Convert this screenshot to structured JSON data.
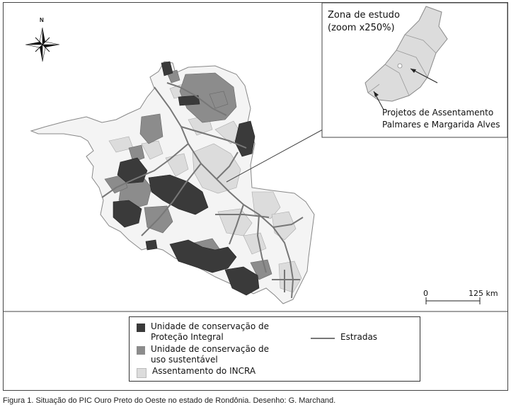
{
  "inset": {
    "title_line1": "Zona de estudo",
    "title_line2": "(zoom x250%)",
    "label_line1": "Projetos de Assentamento",
    "label_line2": "Palmares e Margarida Alves"
  },
  "compass": {
    "north": "N"
  },
  "scale": {
    "zero": "0",
    "distance": "125 km"
  },
  "legend": {
    "items": [
      {
        "line1": "Unidade de conservação de",
        "line2": "Proteção Integral",
        "color": "#3a3a3a"
      },
      {
        "line1": "Unidade de conservação de",
        "line2": "uso sustentável",
        "color": "#8c8c8c"
      },
      {
        "line1": "Assentamento do INCRA",
        "line2": "",
        "color": "#dcdcdc"
      }
    ],
    "road": {
      "label": "Estradas",
      "color": "#777777"
    }
  },
  "caption": "Figura 1. Situação do PIC Ouro Preto do Oeste no estado de Rondônia. Desenho: G. Marchand."
}
